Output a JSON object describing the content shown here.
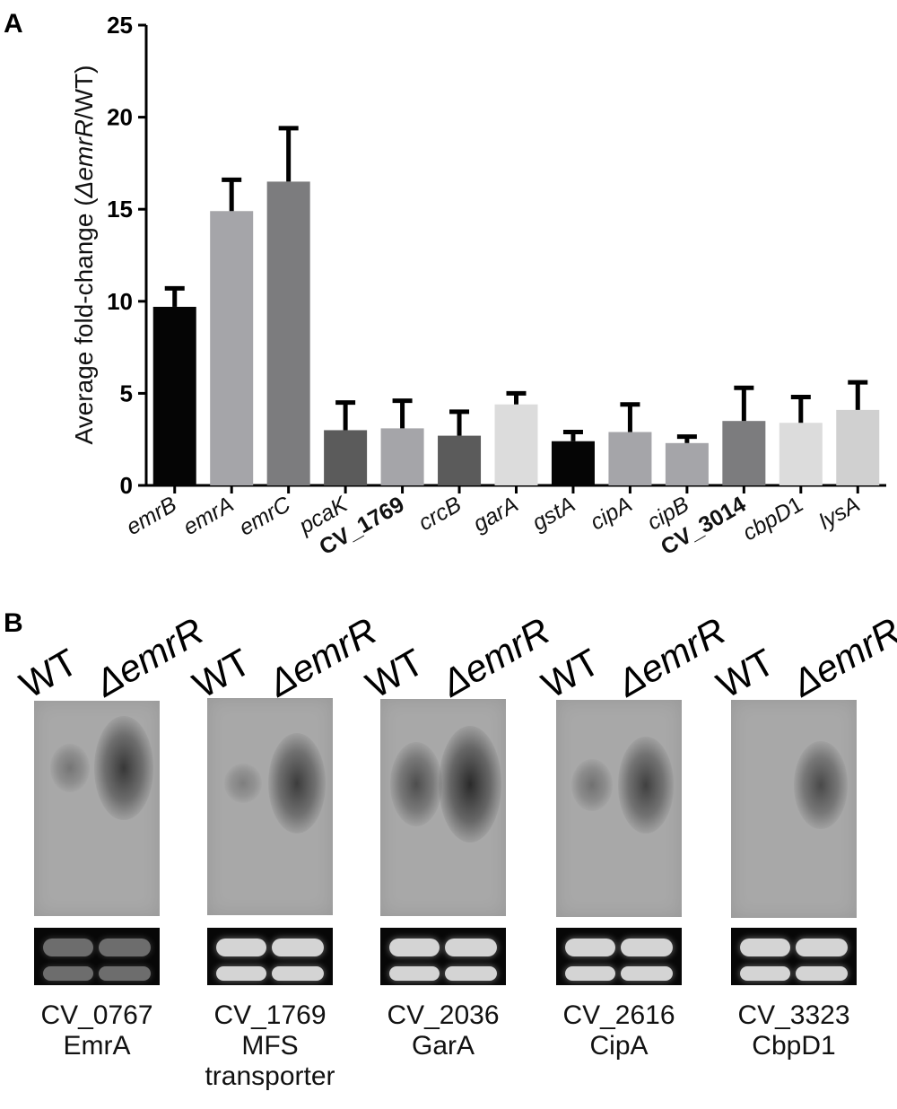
{
  "panel_a": {
    "letter": "A",
    "chart_data": {
      "type": "bar",
      "title": "",
      "ylabel_parts": [
        "Average fold-change (",
        "ΔemrR",
        "/WT)"
      ],
      "ylim": [
        0,
        25
      ],
      "yticks": [
        0,
        5,
        10,
        15,
        20,
        25
      ],
      "error_bars": "upper",
      "categories": [
        "emrB",
        "emrA",
        "emrC",
        "pcaK",
        "CV_1769",
        "crcB",
        "garA",
        "gstA",
        "cipA",
        "cipB",
        "CV_3014",
        "cbpD1",
        "lysA"
      ],
      "category_style": [
        "italic",
        "italic",
        "italic",
        "italic",
        "bold",
        "italic",
        "italic",
        "italic",
        "italic",
        "italic",
        "bold",
        "italic-digit",
        "italic"
      ],
      "values": [
        9.7,
        14.9,
        16.5,
        3.0,
        3.1,
        2.7,
        4.4,
        2.4,
        2.9,
        2.3,
        3.5,
        3.4,
        4.1
      ],
      "errors": [
        1.0,
        1.7,
        2.9,
        1.5,
        1.5,
        1.3,
        0.6,
        0.5,
        1.5,
        0.35,
        1.8,
        1.4,
        1.5
      ],
      "colors": [
        "#050505",
        "#a5a5a9",
        "#7c7c7e",
        "#5b5b5b",
        "#a5a5a9",
        "#5b5b5b",
        "#dcdcdc",
        "#050505",
        "#a5a5a9",
        "#a5a5a9",
        "#7c7c7e",
        "#dcdcdc",
        "#d0d0d0"
      ]
    }
  },
  "panel_b": {
    "letter": "B",
    "lane_labels": {
      "wt": "WT",
      "mutant": "ΔemrR"
    },
    "blots": [
      {
        "caption": [
          "CV_0767",
          "EmrA"
        ],
        "wt_signal": 0.15,
        "mutant_signal": 0.85
      },
      {
        "caption": [
          "CV_1769",
          "MFS",
          "transporter"
        ],
        "wt_signal": 0.05,
        "mutant_signal": 0.8
      },
      {
        "caption": [
          "CV_2036",
          "GarA"
        ],
        "wt_signal": 0.6,
        "mutant_signal": 1.0
      },
      {
        "caption": [
          "CV_2616",
          "CipA"
        ],
        "wt_signal": 0.2,
        "mutant_signal": 0.75
      },
      {
        "caption": [
          "CV_3323",
          "CbpD1"
        ],
        "wt_signal": 0.0,
        "mutant_signal": 0.65
      }
    ]
  }
}
